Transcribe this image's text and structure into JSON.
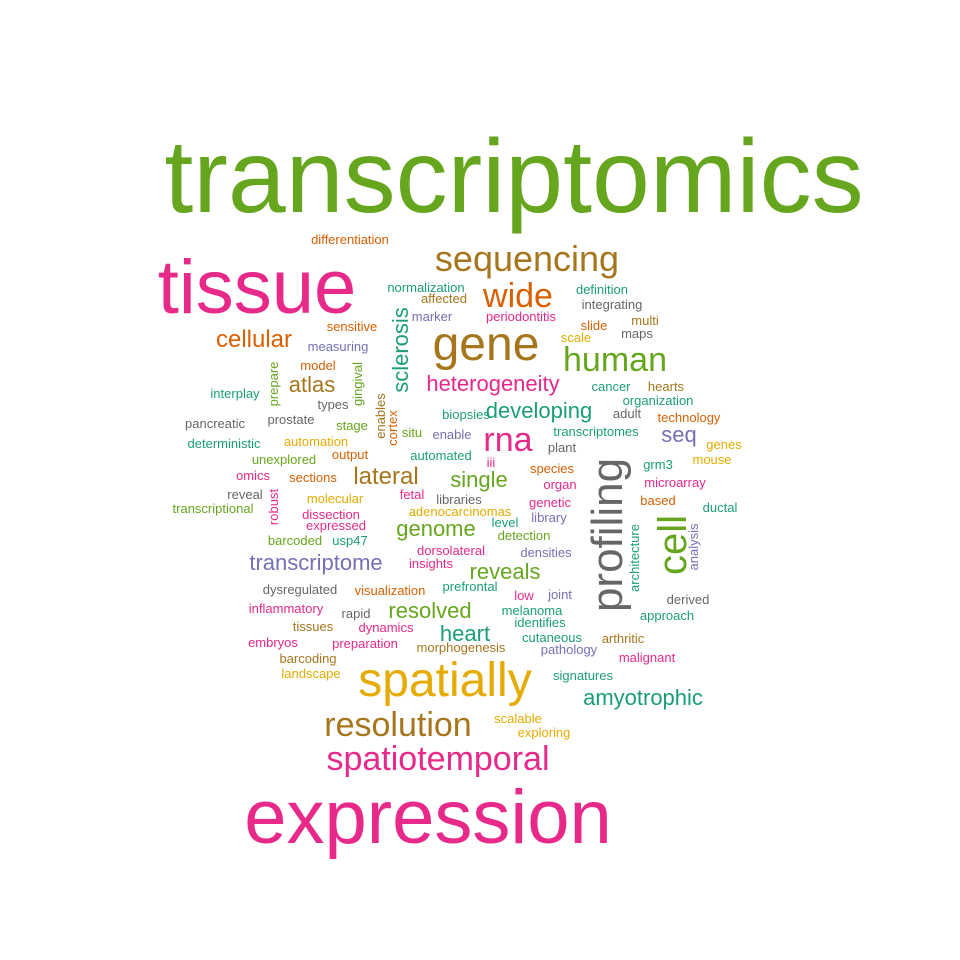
{
  "palette": {
    "green": "#66a61e",
    "magenta": "#e7298a",
    "brown": "#a6761d",
    "orange": "#d95f02",
    "purple": "#7570b3",
    "teal": "#1b9e77",
    "gold": "#e6ab02",
    "gray": "#666666"
  },
  "words": [
    {
      "text": "transcriptomics",
      "color": "green"
    },
    {
      "text": "tissue",
      "color": "magenta"
    },
    {
      "text": "expression",
      "color": "magenta"
    },
    {
      "text": "gene",
      "color": "brown"
    },
    {
      "text": "spatially",
      "color": "gold"
    },
    {
      "text": "profiling",
      "color": "gray"
    },
    {
      "text": "sequencing",
      "color": "brown"
    },
    {
      "text": "cell",
      "color": "green"
    },
    {
      "text": "wide",
      "color": "orange"
    },
    {
      "text": "human",
      "color": "green"
    },
    {
      "text": "rna",
      "color": "magenta"
    },
    {
      "text": "resolution",
      "color": "brown"
    },
    {
      "text": "spatiotemporal",
      "color": "magenta"
    },
    {
      "text": "cellular",
      "color": "orange"
    },
    {
      "text": "sclerosis",
      "color": "teal"
    },
    {
      "text": "heterogeneity",
      "color": "magenta"
    },
    {
      "text": "atlas",
      "color": "brown"
    },
    {
      "text": "developing",
      "color": "teal"
    },
    {
      "text": "seq",
      "color": "purple"
    },
    {
      "text": "lateral",
      "color": "brown"
    },
    {
      "text": "single",
      "color": "green"
    },
    {
      "text": "genome",
      "color": "green"
    },
    {
      "text": "transcriptome",
      "color": "purple"
    },
    {
      "text": "reveals",
      "color": "green"
    },
    {
      "text": "resolved",
      "color": "green"
    },
    {
      "text": "heart",
      "color": "teal"
    },
    {
      "text": "amyotrophic",
      "color": "teal"
    },
    {
      "text": "differentiation",
      "color": "orange"
    },
    {
      "text": "normalization",
      "color": "teal"
    },
    {
      "text": "affected",
      "color": "brown"
    },
    {
      "text": "definition",
      "color": "teal"
    },
    {
      "text": "integrating",
      "color": "gray"
    },
    {
      "text": "marker",
      "color": "purple"
    },
    {
      "text": "periodontitis",
      "color": "magenta"
    },
    {
      "text": "sensitive",
      "color": "orange"
    },
    {
      "text": "slide",
      "color": "orange"
    },
    {
      "text": "multi",
      "color": "brown"
    },
    {
      "text": "scale",
      "color": "gold"
    },
    {
      "text": "maps",
      "color": "gray"
    },
    {
      "text": "measuring",
      "color": "purple"
    },
    {
      "text": "model",
      "color": "orange"
    },
    {
      "text": "prepare",
      "color": "green"
    },
    {
      "text": "gingival",
      "color": "green"
    },
    {
      "text": "interplay",
      "color": "teal"
    },
    {
      "text": "cancer",
      "color": "teal"
    },
    {
      "text": "hearts",
      "color": "brown"
    },
    {
      "text": "organization",
      "color": "teal"
    },
    {
      "text": "types",
      "color": "gray"
    },
    {
      "text": "enables",
      "color": "brown"
    },
    {
      "text": "biopsies",
      "color": "teal"
    },
    {
      "text": "adult",
      "color": "gray"
    },
    {
      "text": "technology",
      "color": "orange"
    },
    {
      "text": "pancreatic",
      "color": "gray"
    },
    {
      "text": "prostate",
      "color": "gray"
    },
    {
      "text": "stage",
      "color": "green"
    },
    {
      "text": "cortex",
      "color": "orange"
    },
    {
      "text": "situ",
      "color": "green"
    },
    {
      "text": "enable",
      "color": "purple"
    },
    {
      "text": "transcriptomes",
      "color": "teal"
    },
    {
      "text": "deterministic",
      "color": "teal"
    },
    {
      "text": "automation",
      "color": "gold"
    },
    {
      "text": "plant",
      "color": "gray"
    },
    {
      "text": "genes",
      "color": "gold"
    },
    {
      "text": "unexplored",
      "color": "green"
    },
    {
      "text": "output",
      "color": "orange"
    },
    {
      "text": "automated",
      "color": "teal"
    },
    {
      "text": "iii",
      "color": "magenta"
    },
    {
      "text": "grm3",
      "color": "teal"
    },
    {
      "text": "mouse",
      "color": "gold"
    },
    {
      "text": "omics",
      "color": "magenta"
    },
    {
      "text": "sections",
      "color": "orange"
    },
    {
      "text": "species",
      "color": "orange"
    },
    {
      "text": "organ",
      "color": "magenta"
    },
    {
      "text": "microarray",
      "color": "magenta"
    },
    {
      "text": "reveal",
      "color": "gray"
    },
    {
      "text": "fetal",
      "color": "magenta"
    },
    {
      "text": "libraries",
      "color": "gray"
    },
    {
      "text": "molecular",
      "color": "gold"
    },
    {
      "text": "robust",
      "color": "magenta"
    },
    {
      "text": "based",
      "color": "orange"
    },
    {
      "text": "genetic",
      "color": "magenta"
    },
    {
      "text": "transcriptional",
      "color": "green"
    },
    {
      "text": "dissection",
      "color": "magenta"
    },
    {
      "text": "adenocarcinomas",
      "color": "gold"
    },
    {
      "text": "library",
      "color": "purple"
    },
    {
      "text": "ductal",
      "color": "teal"
    },
    {
      "text": "expressed",
      "color": "magenta"
    },
    {
      "text": "level",
      "color": "teal"
    },
    {
      "text": "barcoded",
      "color": "green"
    },
    {
      "text": "usp47",
      "color": "teal"
    },
    {
      "text": "detection",
      "color": "green"
    },
    {
      "text": "architecture",
      "color": "teal"
    },
    {
      "text": "analysis",
      "color": "purple"
    },
    {
      "text": "dorsolateral",
      "color": "magenta"
    },
    {
      "text": "densities",
      "color": "purple"
    },
    {
      "text": "insights",
      "color": "magenta"
    },
    {
      "text": "dysregulated",
      "color": "gray"
    },
    {
      "text": "visualization",
      "color": "orange"
    },
    {
      "text": "prefrontal",
      "color": "teal"
    },
    {
      "text": "low",
      "color": "magenta"
    },
    {
      "text": "joint",
      "color": "purple"
    },
    {
      "text": "derived",
      "color": "gray"
    },
    {
      "text": "inflammatory",
      "color": "magenta"
    },
    {
      "text": "rapid",
      "color": "gray"
    },
    {
      "text": "melanoma",
      "color": "teal"
    },
    {
      "text": "approach",
      "color": "teal"
    },
    {
      "text": "tissues",
      "color": "brown"
    },
    {
      "text": "dynamics",
      "color": "magenta"
    },
    {
      "text": "identifies",
      "color": "teal"
    },
    {
      "text": "cutaneous",
      "color": "teal"
    },
    {
      "text": "arthritic",
      "color": "brown"
    },
    {
      "text": "embryos",
      "color": "magenta"
    },
    {
      "text": "preparation",
      "color": "magenta"
    },
    {
      "text": "morphogenesis",
      "color": "brown"
    },
    {
      "text": "pathology",
      "color": "purple"
    },
    {
      "text": "malignant",
      "color": "magenta"
    },
    {
      "text": "barcoding",
      "color": "brown"
    },
    {
      "text": "landscape",
      "color": "gold"
    },
    {
      "text": "signatures",
      "color": "teal"
    },
    {
      "text": "scalable",
      "color": "gold"
    },
    {
      "text": "exploring",
      "color": "gold"
    }
  ]
}
